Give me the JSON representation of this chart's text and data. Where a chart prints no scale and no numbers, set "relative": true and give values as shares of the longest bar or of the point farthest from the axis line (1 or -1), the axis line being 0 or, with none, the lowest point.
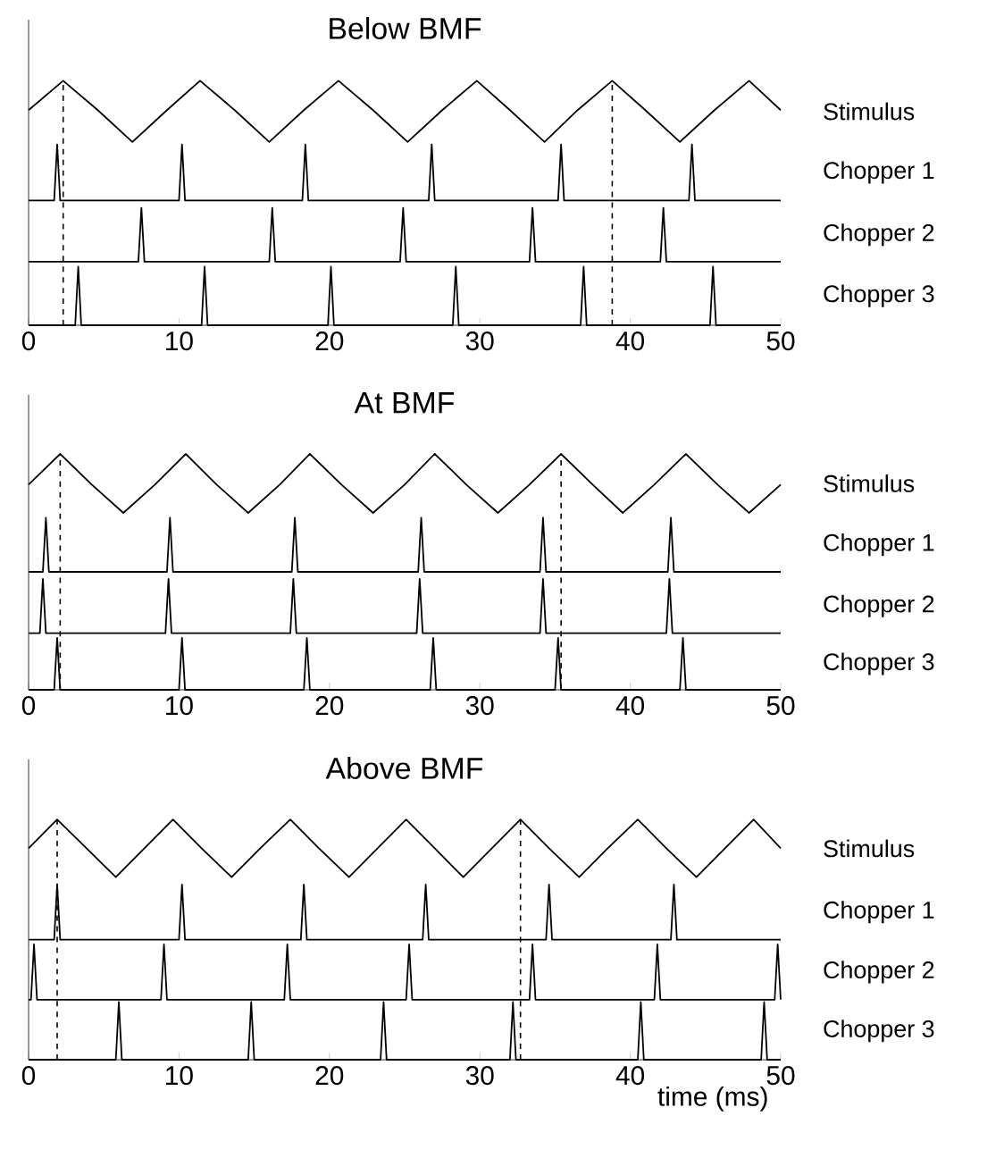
{
  "chart_data": [
    {
      "type": "line",
      "title": "Below BMF",
      "relative": true,
      "xlim": [
        0,
        50
      ],
      "xticks": [
        0,
        10,
        20,
        30,
        40,
        50
      ],
      "tick_labels": "x",
      "ref_lines": [
        {
          "axis": "x",
          "value": 2.3,
          "color": "#000000",
          "line_style": "dashed"
        },
        {
          "axis": "x",
          "value": 38.8,
          "color": "#000000",
          "line_style": "dashed"
        }
      ],
      "series": [
        {
          "name": "Stimulus",
          "color": "#000000",
          "x": [
            0,
            2.3,
            4.6,
            6.9,
            9.2,
            11.4,
            13.7,
            16.0,
            18.3,
            20.6,
            22.9,
            25.2,
            27.5,
            29.8,
            32.0,
            34.3,
            36.5,
            38.8,
            41.0,
            43.3,
            45.6,
            47.9,
            50
          ],
          "values": [
            0.88,
            1,
            0.88,
            0.75,
            0.88,
            1,
            0.88,
            0.75,
            0.88,
            1,
            0.88,
            0.75,
            0.88,
            1,
            0.88,
            0.75,
            0.88,
            1,
            0.88,
            0.75,
            0.88,
            1,
            0.88
          ]
        },
        {
          "name": "Chopper 1",
          "color": "#000000",
          "x": [
            0,
            1.7,
            1.9,
            2.1,
            10.0,
            10.2,
            10.4,
            18.2,
            18.4,
            18.6,
            26.6,
            26.8,
            27.0,
            35.2,
            35.4,
            35.6,
            43.9,
            44.1,
            44.3,
            50
          ],
          "values": [
            0.51,
            0.51,
            0.74,
            0.51,
            0.51,
            0.74,
            0.51,
            0.51,
            0.74,
            0.51,
            0.51,
            0.74,
            0.51,
            0.51,
            0.74,
            0.51,
            0.51,
            0.74,
            0.51,
            0.51
          ]
        },
        {
          "name": "Chopper 2",
          "color": "#000000",
          "x": [
            0,
            7.3,
            7.5,
            7.7,
            16.0,
            16.2,
            16.4,
            24.7,
            24.9,
            25.1,
            33.3,
            33.5,
            33.7,
            42.0,
            42.2,
            42.4,
            50
          ],
          "values": [
            0.26,
            0.26,
            0.48,
            0.26,
            0.26,
            0.48,
            0.26,
            0.26,
            0.48,
            0.26,
            0.26,
            0.48,
            0.26,
            0.26,
            0.48,
            0.26,
            0.26
          ]
        },
        {
          "name": "Chopper 3",
          "color": "#000000",
          "x": [
            0,
            3.1,
            3.3,
            3.5,
            11.5,
            11.7,
            11.9,
            19.9,
            20.1,
            20.3,
            28.2,
            28.4,
            28.6,
            36.7,
            36.9,
            37.1,
            45.3,
            45.5,
            45.7,
            50
          ],
          "values": [
            0,
            0,
            0.24,
            0,
            0,
            0.24,
            0,
            0,
            0.24,
            0,
            0,
            0.24,
            0,
            0,
            0.24,
            0,
            0,
            0.24,
            0,
            0
          ]
        }
      ]
    },
    {
      "type": "line",
      "title": "At BMF",
      "relative": true,
      "xlim": [
        0,
        50
      ],
      "xticks": [
        0,
        10,
        20,
        30,
        40,
        50
      ],
      "tick_labels": "x",
      "ref_lines": [
        {
          "axis": "x",
          "value": 2.1,
          "color": "#000000",
          "line_style": "dashed"
        },
        {
          "axis": "x",
          "value": 35.4,
          "color": "#000000",
          "line_style": "dashed"
        }
      ],
      "series": [
        {
          "name": "Stimulus",
          "color": "#000000",
          "x": [
            0,
            2.1,
            4.2,
            6.3,
            8.4,
            10.45,
            12.5,
            14.6,
            16.7,
            18.7,
            20.8,
            22.9,
            25.0,
            27.0,
            29.1,
            31.2,
            33.3,
            35.4,
            37.5,
            39.5,
            41.6,
            43.7,
            45.8,
            47.9,
            50
          ],
          "values": [
            0.87,
            1,
            0.87,
            0.75,
            0.87,
            1,
            0.87,
            0.75,
            0.87,
            1,
            0.87,
            0.75,
            0.87,
            1,
            0.87,
            0.75,
            0.87,
            1,
            0.87,
            0.75,
            0.87,
            1,
            0.87,
            0.75,
            0.87
          ]
        },
        {
          "name": "Chopper 1",
          "color": "#000000",
          "x": [
            0,
            0.95,
            1.15,
            1.35,
            9.2,
            9.4,
            9.6,
            17.5,
            17.7,
            17.9,
            25.9,
            26.1,
            26.3,
            34.0,
            34.2,
            34.4,
            42.5,
            42.7,
            42.9,
            50
          ],
          "values": [
            0.5,
            0.5,
            0.73,
            0.5,
            0.5,
            0.73,
            0.5,
            0.5,
            0.73,
            0.5,
            0.5,
            0.73,
            0.5,
            0.5,
            0.73,
            0.5,
            0.5,
            0.73,
            0.5,
            0.5
          ]
        },
        {
          "name": "Chopper 2",
          "color": "#000000",
          "x": [
            0,
            0.75,
            0.95,
            1.15,
            9.1,
            9.3,
            9.5,
            17.4,
            17.6,
            17.8,
            25.8,
            26.0,
            26.2,
            34.0,
            34.2,
            34.4,
            42.4,
            42.6,
            42.8,
            50
          ],
          "values": [
            0.24,
            0.24,
            0.47,
            0.24,
            0.24,
            0.47,
            0.24,
            0.24,
            0.47,
            0.24,
            0.24,
            0.47,
            0.24,
            0.24,
            0.47,
            0.24,
            0.24,
            0.47,
            0.24,
            0.24
          ]
        },
        {
          "name": "Chopper 3",
          "color": "#000000",
          "x": [
            0,
            1.7,
            1.9,
            2.1,
            10.0,
            10.2,
            10.4,
            18.3,
            18.5,
            18.7,
            26.7,
            26.9,
            27.1,
            35.0,
            35.2,
            35.4,
            43.3,
            43.5,
            43.7,
            50
          ],
          "values": [
            0,
            0,
            0.22,
            0,
            0,
            0.22,
            0,
            0,
            0.22,
            0,
            0,
            0.22,
            0,
            0,
            0.22,
            0,
            0,
            0.22,
            0,
            0
          ]
        }
      ]
    },
    {
      "type": "line",
      "title": "Above BMF",
      "xlabel": "time (ms)",
      "relative": true,
      "xlim": [
        0,
        50
      ],
      "xticks": [
        0,
        10,
        20,
        30,
        40,
        50
      ],
      "tick_labels": "x",
      "ref_lines": [
        {
          "axis": "x",
          "value": 1.9,
          "color": "#000000",
          "line_style": "dashed"
        },
        {
          "axis": "x",
          "value": 32.7,
          "color": "#000000",
          "line_style": "dashed"
        }
      ],
      "series": [
        {
          "name": "Stimulus",
          "color": "#000000",
          "x": [
            0,
            1.9,
            3.85,
            5.8,
            7.7,
            9.6,
            11.5,
            13.5,
            15.4,
            17.4,
            19.3,
            21.3,
            23.2,
            25.1,
            27.0,
            28.9,
            30.8,
            32.7,
            34.6,
            36.6,
            38.5,
            40.5,
            42.4,
            44.4,
            46.3,
            48.2,
            50
          ],
          "values": [
            0.88,
            1,
            0.88,
            0.76,
            0.88,
            1,
            0.88,
            0.76,
            0.88,
            1,
            0.88,
            0.76,
            0.88,
            1,
            0.88,
            0.76,
            0.88,
            1,
            0.88,
            0.76,
            0.88,
            1,
            0.88,
            0.76,
            0.88,
            1,
            0.88
          ]
        },
        {
          "name": "Chopper 1",
          "color": "#000000",
          "x": [
            0,
            1.7,
            1.9,
            2.1,
            10.0,
            10.2,
            10.4,
            18.1,
            18.3,
            18.5,
            26.2,
            26.4,
            26.6,
            34.4,
            34.6,
            34.8,
            42.7,
            42.9,
            43.1,
            50
          ],
          "values": [
            0.5,
            0.5,
            0.73,
            0.5,
            0.5,
            0.73,
            0.5,
            0.5,
            0.73,
            0.5,
            0.5,
            0.73,
            0.5,
            0.5,
            0.73,
            0.5,
            0.5,
            0.73,
            0.5,
            0.5
          ]
        },
        {
          "name": "Chopper 2",
          "color": "#000000",
          "x": [
            0,
            0.16,
            0.36,
            0.56,
            8.8,
            9.0,
            9.2,
            17.0,
            17.2,
            17.4,
            25.1,
            25.3,
            25.5,
            33.3,
            33.5,
            33.7,
            41.6,
            41.8,
            42.0,
            49.6,
            49.8,
            50
          ],
          "values": [
            0.25,
            0.25,
            0.48,
            0.25,
            0.25,
            0.48,
            0.25,
            0.25,
            0.48,
            0.25,
            0.25,
            0.48,
            0.25,
            0.25,
            0.48,
            0.25,
            0.25,
            0.48,
            0.25,
            0.25,
            0.48,
            0.25
          ]
        },
        {
          "name": "Chopper 3",
          "color": "#000000",
          "x": [
            0,
            5.8,
            6.0,
            6.2,
            14.6,
            14.8,
            15.0,
            23.4,
            23.6,
            23.8,
            32.0,
            32.2,
            32.4,
            40.5,
            40.7,
            40.9,
            48.7,
            48.9,
            49.1,
            50
          ],
          "values": [
            0,
            0,
            0.24,
            0,
            0,
            0.24,
            0,
            0,
            0.24,
            0,
            0,
            0.24,
            0,
            0,
            0.24,
            0,
            0,
            0.24,
            0,
            0
          ]
        }
      ]
    }
  ]
}
